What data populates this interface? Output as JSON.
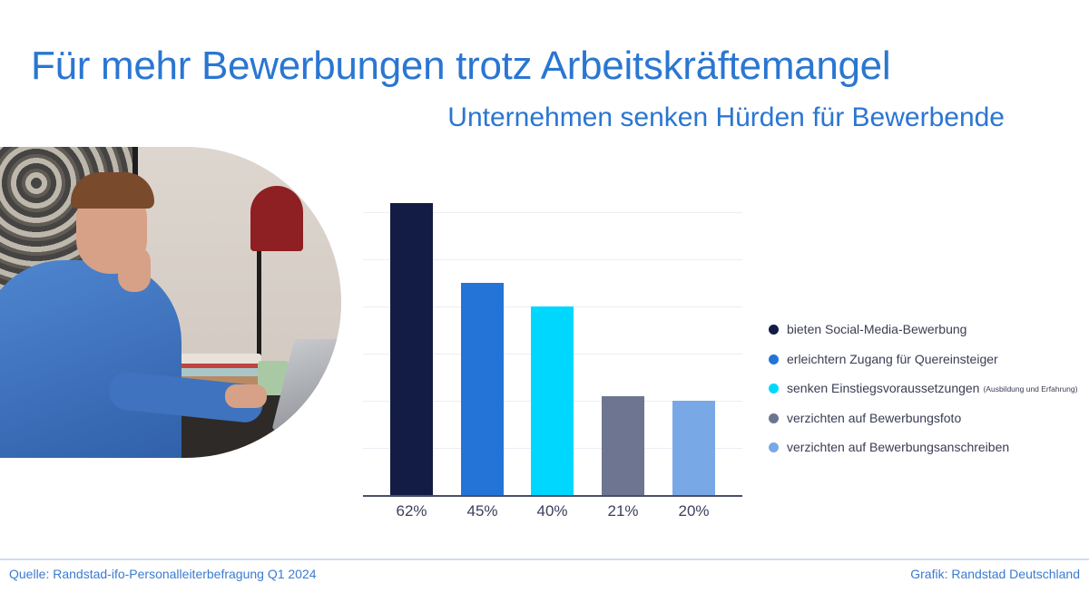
{
  "header": {
    "title": "Für mehr Bewerbungen trotz Arbeitskräftemangel",
    "subtitle": "Unternehmen senken Hürden für Bewerbende"
  },
  "photo": {
    "description": "Mann im blauen Pullover am Laptop mit roter Schreibtischlampe"
  },
  "colors": {
    "title": "#2a76d2",
    "series": [
      "#131c45",
      "#2474d8",
      "#00d7ff",
      "#6e7590",
      "#78a9e6"
    ],
    "footer": "#3b7bd0"
  },
  "chart_data": {
    "type": "bar",
    "title": "Für mehr Bewerbungen trotz Arbeitskräftemangel",
    "subtitle": "Unternehmen senken Hürden für Bewerbende",
    "categories": [
      "bieten Social-Media-Bewerbung",
      "erleichtern Zugang für Quereinsteiger",
      "senken Einstiegsvoraussetzungen (Ausbildung und Erfahrung)",
      "verzichten auf Bewerbungsfoto",
      "verzichten auf Bewerbungsanschreiben"
    ],
    "values": [
      62,
      45,
      40,
      21,
      20
    ],
    "value_labels": [
      "62%",
      "45%",
      "40%",
      "21%",
      "20%"
    ],
    "unit": "%",
    "xlabel": "",
    "ylabel": "",
    "ylim": [
      0,
      65
    ],
    "grid": true,
    "gridline_step": 10,
    "legend_position": "right"
  },
  "legend": {
    "items": [
      {
        "label": "bieten Social-Media-Bewerbung",
        "note": ""
      },
      {
        "label": "erleichtern Zugang für Quereinsteiger",
        "note": ""
      },
      {
        "label": "senken Einstiegsvoraussetzungen",
        "note": "(Ausbildung und Erfahrung)"
      },
      {
        "label": "verzichten auf Bewerbungsfoto",
        "note": ""
      },
      {
        "label": "verzichten auf Bewerbungsanschreiben",
        "note": ""
      }
    ]
  },
  "footer": {
    "source": "Quelle: Randstad-ifo-Personalleiterbefragung Q1 2024",
    "credit": "Grafik: Randstad Deutschland"
  }
}
